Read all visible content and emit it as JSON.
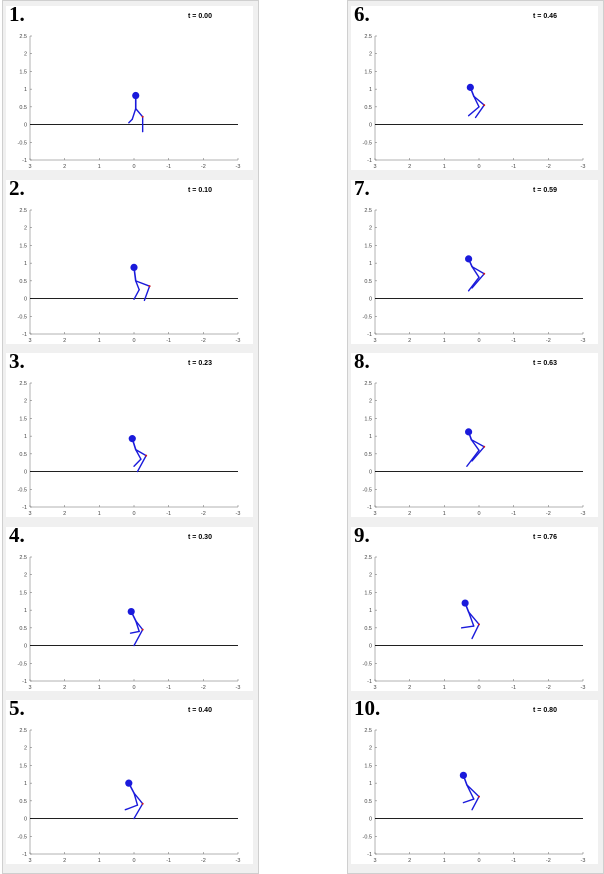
{
  "figure": {
    "colors": {
      "figure": "#1a1adb",
      "knee": "#d21a1a",
      "ground": "#000000",
      "axis": "#666666",
      "plot_bg": "#ffffff",
      "figure_bg": "#f0f0f0"
    },
    "icon": "stick-figure"
  },
  "chart_data": [
    {
      "type": "line",
      "frame_label": "1.",
      "time_label": "t = 0.00",
      "column": 0,
      "row": 0,
      "xlim": [
        3,
        -3
      ],
      "ylim": [
        -1,
        2.5
      ],
      "x_reversed": true,
      "xticks": [
        "3",
        "2",
        "1",
        "0",
        "-1",
        "-2",
        "-3"
      ],
      "yticks": [
        "-1",
        "-0.5",
        "0",
        "0.5",
        "1",
        "1.5",
        "2",
        "2.5"
      ],
      "ground_y": 0,
      "pose": {
        "head": [
          -0.05,
          0.82
        ],
        "hip": [
          -0.05,
          0.45
        ],
        "knee_front": [
          -0.25,
          0.22
        ],
        "foot_front": [
          -0.25,
          -0.2
        ],
        "knee_back": [
          0.05,
          0.15
        ],
        "foot_back": [
          0.15,
          0.05
        ]
      }
    },
    {
      "type": "line",
      "frame_label": "2.",
      "time_label": "t = 0.10",
      "column": 0,
      "row": 1,
      "xlim": [
        3,
        -3
      ],
      "ylim": [
        -1,
        2.5
      ],
      "x_reversed": true,
      "xticks": [
        "3",
        "2",
        "1",
        "0",
        "-1",
        "-2",
        "-3"
      ],
      "yticks": [
        "-1",
        "-0.5",
        "0",
        "0.5",
        "1",
        "1.5",
        "2",
        "2.5"
      ],
      "ground_y": 0,
      "pose": {
        "head": [
          0.0,
          0.88
        ],
        "hip": [
          -0.05,
          0.5
        ],
        "knee_front": [
          -0.45,
          0.35
        ],
        "foot_front": [
          -0.3,
          -0.05
        ],
        "knee_back": [
          -0.15,
          0.25
        ],
        "foot_back": [
          0.0,
          -0.02
        ]
      }
    },
    {
      "type": "line",
      "frame_label": "3.",
      "time_label": "t = 0.23",
      "column": 0,
      "row": 2,
      "xlim": [
        3,
        -3
      ],
      "ylim": [
        -1,
        2.5
      ],
      "x_reversed": true,
      "xticks": [
        "3",
        "2",
        "1",
        "0",
        "-1",
        "-2",
        "-3"
      ],
      "yticks": [
        "-1",
        "-0.5",
        "0",
        "0.5",
        "1",
        "1.5",
        "2",
        "2.5"
      ],
      "ground_y": 0,
      "pose": {
        "head": [
          0.05,
          0.93
        ],
        "hip": [
          -0.05,
          0.62
        ],
        "knee_front": [
          -0.35,
          0.45
        ],
        "foot_front": [
          -0.1,
          0.0
        ],
        "knee_back": [
          -0.2,
          0.35
        ],
        "foot_back": [
          0.0,
          0.15
        ]
      }
    },
    {
      "type": "line",
      "frame_label": "4.",
      "time_label": "t = 0.30",
      "column": 0,
      "row": 3,
      "xlim": [
        3,
        -3
      ],
      "ylim": [
        -1,
        2.5
      ],
      "x_reversed": true,
      "xticks": [
        "3",
        "2",
        "1",
        "0",
        "-1",
        "-2",
        "-3"
      ],
      "yticks": [
        "-1",
        "-0.5",
        "0",
        "0.5",
        "1",
        "1.5",
        "2",
        "2.5"
      ],
      "ground_y": 0,
      "pose": {
        "head": [
          0.08,
          0.96
        ],
        "hip": [
          -0.05,
          0.7
        ],
        "knee_front": [
          -0.25,
          0.45
        ],
        "foot_front": [
          0.0,
          0.0
        ],
        "knee_back": [
          -0.15,
          0.4
        ],
        "foot_back": [
          0.1,
          0.35
        ]
      }
    },
    {
      "type": "line",
      "frame_label": "5.",
      "time_label": "t = 0.40",
      "column": 0,
      "row": 4,
      "xlim": [
        3,
        -3
      ],
      "ylim": [
        -1,
        2.5
      ],
      "x_reversed": true,
      "xticks": [
        "3",
        "2",
        "1",
        "0",
        "-1",
        "-2",
        "-3"
      ],
      "yticks": [
        "-1",
        "-0.5",
        "0",
        "0.5",
        "1",
        "1.5",
        "2",
        "2.5"
      ],
      "ground_y": 0,
      "pose": {
        "head": [
          0.15,
          1.0
        ],
        "hip": [
          0.0,
          0.72
        ],
        "knee_front": [
          -0.25,
          0.42
        ],
        "foot_front": [
          0.0,
          0.0
        ],
        "knee_back": [
          -0.1,
          0.38
        ],
        "foot_back": [
          0.25,
          0.25
        ]
      }
    },
    {
      "type": "line",
      "frame_label": "6.",
      "time_label": "t = 0.46",
      "column": 1,
      "row": 0,
      "xlim": [
        3,
        -3
      ],
      "ylim": [
        -1,
        2.5
      ],
      "x_reversed": true,
      "xticks": [
        "3",
        "2",
        "1",
        "0",
        "-1",
        "-2",
        "-3"
      ],
      "yticks": [
        "-1",
        "-0.5",
        "0",
        "0.5",
        "1",
        "1.5",
        "2",
        "2.5"
      ],
      "ground_y": 0,
      "pose": {
        "head": [
          0.25,
          1.05
        ],
        "hip": [
          0.15,
          0.8
        ],
        "knee_front": [
          -0.15,
          0.55
        ],
        "foot_front": [
          0.1,
          0.2
        ],
        "knee_back": [
          0.0,
          0.5
        ],
        "foot_back": [
          0.3,
          0.25
        ]
      }
    },
    {
      "type": "line",
      "frame_label": "7.",
      "time_label": "t = 0.59",
      "column": 1,
      "row": 1,
      "xlim": [
        3,
        -3
      ],
      "ylim": [
        -1,
        2.5
      ],
      "x_reversed": true,
      "xticks": [
        "3",
        "2",
        "1",
        "0",
        "-1",
        "-2",
        "-3"
      ],
      "yticks": [
        "-1",
        "-0.5",
        "0",
        "0.5",
        "1",
        "1.5",
        "2",
        "2.5"
      ],
      "ground_y": 0,
      "pose": {
        "head": [
          0.3,
          1.12
        ],
        "hip": [
          0.2,
          0.9
        ],
        "knee_front": [
          -0.15,
          0.7
        ],
        "foot_front": [
          0.2,
          0.3
        ],
        "knee_back": [
          0.0,
          0.6
        ],
        "foot_back": [
          0.3,
          0.22
        ]
      }
    },
    {
      "type": "line",
      "frame_label": "8.",
      "time_label": "t = 0.63",
      "column": 1,
      "row": 2,
      "xlim": [
        3,
        -3
      ],
      "ylim": [
        -1,
        2.5
      ],
      "x_reversed": true,
      "xticks": [
        "3",
        "2",
        "1",
        "0",
        "-1",
        "-2",
        "-3"
      ],
      "yticks": [
        "-1",
        "-0.5",
        "0",
        "0.5",
        "1",
        "1.5",
        "2",
        "2.5"
      ],
      "ground_y": 0,
      "pose": {
        "head": [
          0.3,
          1.12
        ],
        "hip": [
          0.22,
          0.9
        ],
        "knee_front": [
          -0.15,
          0.7
        ],
        "foot_front": [
          0.2,
          0.3
        ],
        "knee_back": [
          0.0,
          0.6
        ],
        "foot_back": [
          0.35,
          0.15
        ]
      }
    },
    {
      "type": "line",
      "frame_label": "9.",
      "time_label": "t = 0.76",
      "column": 1,
      "row": 3,
      "xlim": [
        3,
        -3
      ],
      "ylim": [
        -1,
        2.5
      ],
      "x_reversed": true,
      "xticks": [
        "3",
        "2",
        "1",
        "0",
        "-1",
        "-2",
        "-3"
      ],
      "yticks": [
        "-1",
        "-0.5",
        "0",
        "0.5",
        "1",
        "1.5",
        "2",
        "2.5"
      ],
      "ground_y": 0,
      "pose": {
        "head": [
          0.4,
          1.2
        ],
        "hip": [
          0.3,
          0.95
        ],
        "knee_front": [
          0.0,
          0.6
        ],
        "foot_front": [
          0.2,
          0.2
        ],
        "knee_back": [
          0.15,
          0.55
        ],
        "foot_back": [
          0.5,
          0.5
        ]
      }
    },
    {
      "type": "line",
      "frame_label": "10.",
      "time_label": "t = 0.80",
      "column": 1,
      "row": 4,
      "xlim": [
        3,
        -3
      ],
      "ylim": [
        -1,
        2.5
      ],
      "x_reversed": true,
      "xticks": [
        "3",
        "2",
        "1",
        "0",
        "-1",
        "-2",
        "-3"
      ],
      "yticks": [
        "-1",
        "-0.5",
        "0",
        "0.5",
        "1",
        "1.5",
        "2",
        "2.5"
      ],
      "ground_y": 0,
      "pose": {
        "head": [
          0.45,
          1.22
        ],
        "hip": [
          0.35,
          0.95
        ],
        "knee_front": [
          0.0,
          0.62
        ],
        "foot_front": [
          0.2,
          0.25
        ],
        "knee_back": [
          0.15,
          0.55
        ],
        "foot_back": [
          0.45,
          0.45
        ]
      }
    }
  ]
}
